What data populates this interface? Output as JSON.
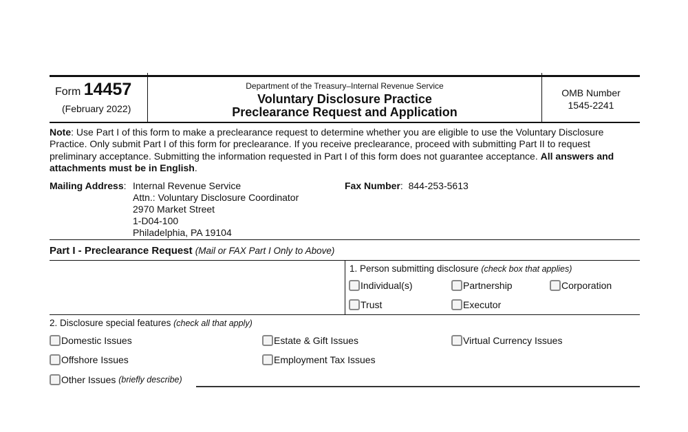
{
  "header": {
    "form_label": "Form",
    "form_number": "14457",
    "form_date": "(February 2022)",
    "department": "Department of the Treasury–Internal Revenue Service",
    "title_line1": "Voluntary Disclosure Practice",
    "title_line2": "Preclearance Request and Application",
    "omb_label": "OMB Number",
    "omb_number": "1545-2241"
  },
  "note": {
    "label": "Note",
    "text": ": Use Part I of this form to make a preclearance request to determine whether you are eligible to use the Voluntary Disclosure Practice. Only submit Part I of this form for preclearance. If you receive preclearance, proceed with submitting Part II to request preliminary acceptance. Submitting the information requested in Part I of this form does not guarantee acceptance. ",
    "bold_text": "All answers and attachments must be in English",
    "end": "."
  },
  "mailing": {
    "label": "Mailing Address",
    "lines": [
      "Internal Revenue Service",
      "Attn.: Voluntary Disclosure Coordinator",
      "2970 Market Street",
      "1-D04-100",
      "Philadelphia, PA 19104"
    ]
  },
  "fax": {
    "label": "Fax Number",
    "value": "844-253-5613"
  },
  "part1": {
    "title": "Part I - Preclearance Request",
    "subtitle": "(Mail or FAX Part I Only to Above)"
  },
  "q1": {
    "label": "1. Person submitting disclosure",
    "hint": "(check box that applies)",
    "options": [
      "Individual(s)",
      "Partnership",
      "Corporation",
      "Trust",
      "Executor"
    ]
  },
  "q2": {
    "label": "2. Disclosure special features",
    "hint": "(check all that apply)",
    "options": [
      "Domestic Issues",
      "Estate & Gift Issues",
      "Virtual Currency Issues",
      "Offshore Issues",
      "Employment Tax Issues",
      "Other Issues"
    ],
    "other_hint": "(briefly describe)",
    "other_value": ""
  }
}
